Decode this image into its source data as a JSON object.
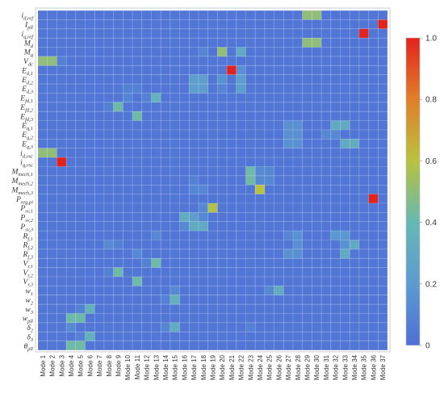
{
  "chart_data": {
    "type": "heatmap",
    "title": "",
    "xlabel": "",
    "ylabel": "",
    "x_categories": [
      "Mode 1",
      "Mode 2",
      "Mode 3",
      "Mode 4",
      "Mode 5",
      "Mode 6",
      "Mode 7",
      "Mode 8",
      "Mode 9",
      "Mode 10",
      "Mode 11",
      "Mode 12",
      "Mode 13",
      "Mode 14",
      "Mode 15",
      "Mode 16",
      "Mode 17",
      "Mode 18",
      "Mode 19",
      "Mode 20",
      "Mode 21",
      "Mode 22",
      "Mode 23",
      "Mode 24",
      "Mode 25",
      "Mode 26",
      "Mode 27",
      "Mode 28",
      "Mode 29",
      "Mode 30",
      "Mode 31",
      "Mode 32",
      "Mode 33",
      "Mode 34",
      "Mode 35",
      "Mode 36",
      "Mode 37"
    ],
    "y_categories": [
      "i_d,ref",
      "I_pll",
      "i_q,ref",
      "M_d",
      "M_q",
      "V_dc",
      "E_d,1",
      "E_d,2",
      "E_d,3",
      "E_fd,1",
      "E_fd,2",
      "E_fd,3",
      "E_q,1",
      "E_q,2",
      "E_q,3",
      "i_d,vsc",
      "i_q,vsc",
      "M_mech,1",
      "M_mech,2",
      "M_mech,3",
      "P_reg,pi",
      "P_sv,1",
      "P_sv,2",
      "P_sv,3",
      "R_f,1",
      "R_f,2",
      "R_f,3",
      "V_r,1",
      "V_r,2",
      "V_r,3",
      "w_1",
      "w_2",
      "w_3",
      "w_pll",
      "δ_2",
      "δ_3",
      "θ_pll"
    ],
    "y_tick_labels": [
      {
        "main": "i",
        "sub": "d,ref"
      },
      {
        "main": "I",
        "sub": "pll"
      },
      {
        "main": "i",
        "sub": "q,ref"
      },
      {
        "main": "M",
        "sub": "d"
      },
      {
        "main": "M",
        "sub": "q"
      },
      {
        "main": "V",
        "sub": "dc"
      },
      {
        "main": "E",
        "sub": "d,1"
      },
      {
        "main": "E",
        "sub": "d,2"
      },
      {
        "main": "E",
        "sub": "d,3"
      },
      {
        "main": "E",
        "sub": "fd,1"
      },
      {
        "main": "E",
        "sub": "fd,2"
      },
      {
        "main": "E",
        "sub": "fd,3"
      },
      {
        "main": "E",
        "sub": "q,1"
      },
      {
        "main": "E",
        "sub": "q,2"
      },
      {
        "main": "E",
        "sub": "q,3"
      },
      {
        "main": "i",
        "sub": "d,vsc"
      },
      {
        "main": "i",
        "sub": "q,vsc"
      },
      {
        "main": "M",
        "sub": "mech,1"
      },
      {
        "main": "M",
        "sub": "mech,2"
      },
      {
        "main": "M",
        "sub": "mech,3"
      },
      {
        "main": "P",
        "sub": "reg,pi"
      },
      {
        "main": "P",
        "sub": "sv,1"
      },
      {
        "main": "P",
        "sub": "sv,2"
      },
      {
        "main": "P",
        "sub": "sv,3"
      },
      {
        "main": "R",
        "sub": "f,1"
      },
      {
        "main": "R",
        "sub": "f,2"
      },
      {
        "main": "R",
        "sub": "f,3"
      },
      {
        "main": "V",
        "sub": "r,1"
      },
      {
        "main": "V",
        "sub": "r,2"
      },
      {
        "main": "V",
        "sub": "r,3"
      },
      {
        "main": "w",
        "sub": "1"
      },
      {
        "main": "w",
        "sub": "2"
      },
      {
        "main": "w",
        "sub": "3"
      },
      {
        "main": "w",
        "sub": "pll"
      },
      {
        "main": "δ",
        "sub": "2"
      },
      {
        "main": "δ",
        "sub": "3"
      },
      {
        "main": "θ",
        "sub": "pll"
      }
    ],
    "value_range": [
      0,
      1
    ],
    "colorbar_ticks": [
      "0",
      "0.2",
      "0.4",
      "0.6",
      "0.8",
      "1.0"
    ],
    "colorscale": [
      "#4f6fd6",
      "#5c9bd0",
      "#66b8b4",
      "#b9c23e",
      "#e07f28",
      "#e3221e"
    ],
    "grid": true,
    "background_value": 0.03,
    "cells": [
      {
        "row": 0,
        "col": 28,
        "value": 0.5
      },
      {
        "row": 0,
        "col": 29,
        "value": 0.5
      },
      {
        "row": 1,
        "col": 36,
        "value": 1.0
      },
      {
        "row": 2,
        "col": 34,
        "value": 1.0
      },
      {
        "row": 3,
        "col": 28,
        "value": 0.5
      },
      {
        "row": 3,
        "col": 29,
        "value": 0.5
      },
      {
        "row": 4,
        "col": 19,
        "value": 0.5
      },
      {
        "row": 4,
        "col": 21,
        "value": 0.3
      },
      {
        "row": 4,
        "col": 17,
        "value": 0.1
      },
      {
        "row": 5,
        "col": 0,
        "value": 0.5
      },
      {
        "row": 5,
        "col": 1,
        "value": 0.5
      },
      {
        "row": 5,
        "col": 2,
        "value": 0.08
      },
      {
        "row": 6,
        "col": 20,
        "value": 1.0
      },
      {
        "row": 6,
        "col": 21,
        "value": 0.15
      },
      {
        "row": 7,
        "col": 16,
        "value": 0.22
      },
      {
        "row": 7,
        "col": 17,
        "value": 0.22
      },
      {
        "row": 7,
        "col": 19,
        "value": 0.16
      },
      {
        "row": 7,
        "col": 21,
        "value": 0.22
      },
      {
        "row": 8,
        "col": 16,
        "value": 0.22
      },
      {
        "row": 8,
        "col": 17,
        "value": 0.22
      },
      {
        "row": 8,
        "col": 19,
        "value": 0.1
      },
      {
        "row": 8,
        "col": 21,
        "value": 0.22
      },
      {
        "row": 8,
        "col": 9,
        "value": 0.08
      },
      {
        "row": 8,
        "col": 10,
        "value": 0.08
      },
      {
        "row": 9,
        "col": 12,
        "value": 0.35
      },
      {
        "row": 9,
        "col": 11,
        "value": 0.08
      },
      {
        "row": 9,
        "col": 9,
        "value": 0.1
      },
      {
        "row": 10,
        "col": 8,
        "value": 0.42
      },
      {
        "row": 10,
        "col": 7,
        "value": 0.08
      },
      {
        "row": 11,
        "col": 10,
        "value": 0.42
      },
      {
        "row": 12,
        "col": 31,
        "value": 0.3
      },
      {
        "row": 12,
        "col": 32,
        "value": 0.3
      },
      {
        "row": 12,
        "col": 26,
        "value": 0.15
      },
      {
        "row": 12,
        "col": 27,
        "value": 0.15
      },
      {
        "row": 13,
        "col": 26,
        "value": 0.15
      },
      {
        "row": 13,
        "col": 27,
        "value": 0.15
      },
      {
        "row": 13,
        "col": 30,
        "value": 0.12
      },
      {
        "row": 13,
        "col": 31,
        "value": 0.12
      },
      {
        "row": 14,
        "col": 33,
        "value": 0.32
      },
      {
        "row": 14,
        "col": 32,
        "value": 0.3
      },
      {
        "row": 14,
        "col": 26,
        "value": 0.15
      },
      {
        "row": 14,
        "col": 27,
        "value": 0.15
      },
      {
        "row": 15,
        "col": 0,
        "value": 0.5
      },
      {
        "row": 15,
        "col": 1,
        "value": 0.5
      },
      {
        "row": 16,
        "col": 2,
        "value": 1.0
      },
      {
        "row": 17,
        "col": 22,
        "value": 0.42
      },
      {
        "row": 17,
        "col": 23,
        "value": 0.12
      },
      {
        "row": 17,
        "col": 24,
        "value": 0.12
      },
      {
        "row": 18,
        "col": 22,
        "value": 0.42
      },
      {
        "row": 18,
        "col": 23,
        "value": 0.12
      },
      {
        "row": 18,
        "col": 24,
        "value": 0.12
      },
      {
        "row": 18,
        "col": 16,
        "value": 0.08
      },
      {
        "row": 19,
        "col": 23,
        "value": 0.6
      },
      {
        "row": 19,
        "col": 16,
        "value": 0.1
      },
      {
        "row": 19,
        "col": 17,
        "value": 0.1
      },
      {
        "row": 20,
        "col": 35,
        "value": 1.0
      },
      {
        "row": 21,
        "col": 18,
        "value": 0.58
      },
      {
        "row": 21,
        "col": 17,
        "value": 0.12
      },
      {
        "row": 22,
        "col": 15,
        "value": 0.32
      },
      {
        "row": 22,
        "col": 16,
        "value": 0.22
      },
      {
        "row": 22,
        "col": 17,
        "value": 0.12
      },
      {
        "row": 23,
        "col": 16,
        "value": 0.3
      },
      {
        "row": 23,
        "col": 17,
        "value": 0.3
      },
      {
        "row": 23,
        "col": 15,
        "value": 0.12
      },
      {
        "row": 24,
        "col": 31,
        "value": 0.18
      },
      {
        "row": 24,
        "col": 32,
        "value": 0.18
      },
      {
        "row": 24,
        "col": 27,
        "value": 0.16
      },
      {
        "row": 24,
        "col": 12,
        "value": 0.12
      },
      {
        "row": 24,
        "col": 26,
        "value": 0.1
      },
      {
        "row": 25,
        "col": 33,
        "value": 0.3
      },
      {
        "row": 25,
        "col": 32,
        "value": 0.16
      },
      {
        "row": 25,
        "col": 27,
        "value": 0.15
      },
      {
        "row": 25,
        "col": 7,
        "value": 0.12
      },
      {
        "row": 25,
        "col": 8,
        "value": 0.08
      },
      {
        "row": 26,
        "col": 32,
        "value": 0.3
      },
      {
        "row": 26,
        "col": 26,
        "value": 0.15
      },
      {
        "row": 26,
        "col": 27,
        "value": 0.15
      },
      {
        "row": 26,
        "col": 10,
        "value": 0.12
      },
      {
        "row": 27,
        "col": 12,
        "value": 0.42
      },
      {
        "row": 27,
        "col": 11,
        "value": 0.08
      },
      {
        "row": 28,
        "col": 8,
        "value": 0.42
      },
      {
        "row": 28,
        "col": 7,
        "value": 0.08
      },
      {
        "row": 29,
        "col": 10,
        "value": 0.42
      },
      {
        "row": 30,
        "col": 25,
        "value": 0.32
      },
      {
        "row": 30,
        "col": 24,
        "value": 0.12
      },
      {
        "row": 30,
        "col": 14,
        "value": 0.12
      },
      {
        "row": 31,
        "col": 14,
        "value": 0.35
      },
      {
        "row": 31,
        "col": 13,
        "value": 0.08
      },
      {
        "row": 32,
        "col": 5,
        "value": 0.35
      },
      {
        "row": 32,
        "col": 4,
        "value": 0.08
      },
      {
        "row": 33,
        "col": 3,
        "value": 0.42
      },
      {
        "row": 33,
        "col": 4,
        "value": 0.42
      },
      {
        "row": 34,
        "col": 14,
        "value": 0.32
      },
      {
        "row": 34,
        "col": 3,
        "value": 0.12
      },
      {
        "row": 34,
        "col": 13,
        "value": 0.1
      },
      {
        "row": 34,
        "col": 22,
        "value": 0.08
      },
      {
        "row": 35,
        "col": 5,
        "value": 0.35
      },
      {
        "row": 35,
        "col": 4,
        "value": 0.08
      },
      {
        "row": 36,
        "col": 3,
        "value": 0.42
      },
      {
        "row": 36,
        "col": 4,
        "value": 0.42
      }
    ]
  }
}
